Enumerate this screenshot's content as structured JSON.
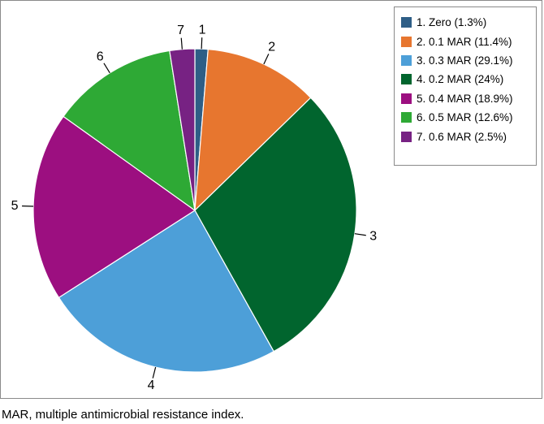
{
  "chart_data": {
    "type": "pie",
    "title": "",
    "slices": [
      {
        "label": "1",
        "legend": "1. Zero (1.3%)",
        "value": 1.3,
        "color": "#2e5e86"
      },
      {
        "label": "2",
        "legend": "2. 0.1 MAR (11.4%)",
        "value": 11.4,
        "color": "#e7762f"
      },
      {
        "label": "3",
        "legend": "3. 0.3 MAR (29.1%)",
        "value": 29.1,
        "color": "#01652e"
      },
      {
        "label": "4",
        "legend": "4. 0.2 MAR (24%)",
        "value": 24,
        "color": "#4d9fd8"
      },
      {
        "label": "5",
        "legend": "5. 0.4 MAR (18.9%)",
        "value": 18.9,
        "color": "#9c0f80"
      },
      {
        "label": "6",
        "legend": "6. 0.5 MAR (12.6%)",
        "value": 12.6,
        "color": "#2ea935"
      },
      {
        "label": "7",
        "legend": "7. 0.6 MAR (2.5%)",
        "value": 2.5,
        "color": "#772283"
      }
    ],
    "legend_order": [
      0,
      1,
      3,
      2,
      4,
      5,
      6
    ],
    "legend_colors_order": [
      "#2e5e86",
      "#e7762f",
      "#4d9fd8",
      "#01652e",
      "#9c0f80",
      "#2ea935",
      "#772283"
    ],
    "legend_placement": "top-right"
  },
  "caption": "MAR, multiple antimicrobial resistance index."
}
